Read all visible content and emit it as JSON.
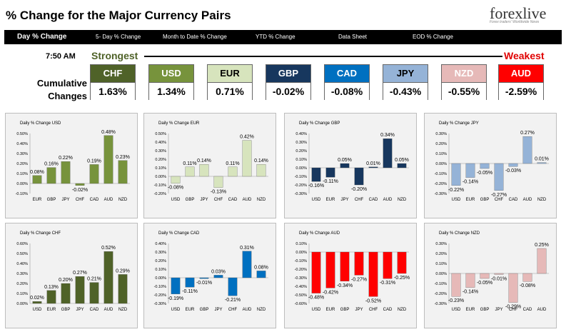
{
  "header": {
    "title": "% Change for the Major Currency Pairs",
    "logo_text": "forexlive",
    "logo_tagline": "Forex traders' Worldwide News"
  },
  "nav": {
    "items": [
      "Day % Change",
      "5- Day % Change",
      "Month to Date % Change",
      "YTD % Change",
      "Data Sheet",
      "EOD % Change"
    ]
  },
  "ranking": {
    "time": "7:50 AM",
    "strongest_label": "Strongest",
    "weakest_label": "Weakest",
    "cumulative_label_line1": "Cumulative",
    "cumulative_label_line2": "Changes",
    "tiles": [
      {
        "currency": "CHF",
        "value": "1.63%",
        "head_color": "#4f6228",
        "text_color": "#ffffff"
      },
      {
        "currency": "USD",
        "value": "1.34%",
        "head_color": "#77933c",
        "text_color": "#ffffff"
      },
      {
        "currency": "EUR",
        "value": "0.71%",
        "head_color": "#d7e4bd",
        "text_color": "#000000"
      },
      {
        "currency": "GBP",
        "value": "-0.02%",
        "head_color": "#17375e",
        "text_color": "#ffffff"
      },
      {
        "currency": "CAD",
        "value": "-0.08%",
        "head_color": "#0070c0",
        "text_color": "#ffffff"
      },
      {
        "currency": "JPY",
        "value": "-0.43%",
        "head_color": "#95b3d7",
        "text_color": "#000000"
      },
      {
        "currency": "NZD",
        "value": "-0.55%",
        "head_color": "#e6b9b8",
        "text_color": "#ffffff"
      },
      {
        "currency": "AUD",
        "value": "-2.59%",
        "head_color": "#ff0000",
        "text_color": "#ffffff"
      }
    ]
  },
  "chart_data": [
    {
      "type": "bar",
      "title": "Daily % Change USD",
      "categories": [
        "EUR",
        "GBP",
        "JPY",
        "CHF",
        "CAD",
        "AUD",
        "NZD"
      ],
      "values": [
        0.08,
        0.16,
        0.22,
        -0.02,
        0.19,
        0.48,
        0.23
      ],
      "value_labels": [
        "0.08%",
        "0.16%",
        "0.22%",
        "-0.02%",
        "0.19%",
        "0.48%",
        "0.23%"
      ],
      "yticks": [
        "0.50%",
        "0.40%",
        "0.30%",
        "0.20%",
        "0.10%",
        "0.00%",
        "-0.10%"
      ],
      "ylim": [
        -0.1,
        0.5
      ],
      "color": "#77933c"
    },
    {
      "type": "bar",
      "title": "Daily % Change EUR",
      "categories": [
        "USD",
        "GBP",
        "JPY",
        "CHF",
        "CAD",
        "AUD",
        "NZD"
      ],
      "values": [
        -0.08,
        0.11,
        0.14,
        -0.13,
        0.11,
        0.42,
        0.14
      ],
      "value_labels": [
        "-0.08%",
        "0.11%",
        "0.14%",
        "-0.13%",
        "0.11%",
        "0.42%",
        "0.14%"
      ],
      "yticks": [
        "0.50%",
        "0.40%",
        "0.30%",
        "0.20%",
        "0.10%",
        "0.00%",
        "-0.10%",
        "-0.20%"
      ],
      "ylim": [
        -0.2,
        0.5
      ],
      "color": "#d7e4bd"
    },
    {
      "type": "bar",
      "title": "Daily % Change GBP",
      "categories": [
        "USD",
        "EUR",
        "JPY",
        "CHF",
        "CAD",
        "AUD",
        "NZD"
      ],
      "values": [
        -0.16,
        -0.11,
        0.05,
        -0.2,
        0.01,
        0.34,
        0.05
      ],
      "value_labels": [
        "-0.16%",
        "-0.11%",
        "0.05%",
        "-0.20%",
        "0.01%",
        "0.34%",
        "0.05%"
      ],
      "yticks": [
        "0.40%",
        "0.30%",
        "0.20%",
        "0.10%",
        "0.00%",
        "-0.10%",
        "-0.20%",
        "-0.30%"
      ],
      "ylim": [
        -0.3,
        0.4
      ],
      "color": "#17375e"
    },
    {
      "type": "bar",
      "title": "Daily % Change JPY",
      "categories": [
        "USD",
        "EUR",
        "GBP",
        "CHF",
        "CAD",
        "AUD",
        "NZD"
      ],
      "values": [
        -0.22,
        -0.14,
        -0.05,
        -0.27,
        -0.03,
        0.27,
        0.01
      ],
      "value_labels": [
        "-0.22%",
        "-0.14%",
        "-0.05%",
        "-0.27%",
        "-0.03%",
        "0.27%",
        "0.01%"
      ],
      "yticks": [
        "0.30%",
        "0.20%",
        "0.10%",
        "0.00%",
        "-0.10%",
        "-0.20%",
        "-0.30%"
      ],
      "ylim": [
        -0.3,
        0.3
      ],
      "color": "#95b3d7"
    },
    {
      "type": "bar",
      "title": "Daily % Change CHF",
      "categories": [
        "USD",
        "EUR",
        "GBP",
        "JPY",
        "CAD",
        "AUD",
        "NZD"
      ],
      "values": [
        0.02,
        0.13,
        0.2,
        0.27,
        0.21,
        0.52,
        0.29
      ],
      "value_labels": [
        "0.02%",
        "0.13%",
        "0.20%",
        "0.27%",
        "0.21%",
        "0.52%",
        "0.29%"
      ],
      "yticks": [
        "0.60%",
        "0.50%",
        "0.40%",
        "0.30%",
        "0.20%",
        "0.10%",
        "0.00%"
      ],
      "ylim": [
        0,
        0.6
      ],
      "color": "#4f6228"
    },
    {
      "type": "bar",
      "title": "Daily % Change CAD",
      "categories": [
        "USD",
        "EUR",
        "GBP",
        "JPY",
        "CHF",
        "AUD",
        "NZD"
      ],
      "values": [
        -0.19,
        -0.11,
        -0.01,
        0.03,
        -0.21,
        0.31,
        0.08
      ],
      "value_labels": [
        "-0.19%",
        "-0.11%",
        "-0.01%",
        "0.03%",
        "-0.21%",
        "0.31%",
        "0.08%"
      ],
      "yticks": [
        "0.40%",
        "0.30%",
        "0.20%",
        "0.10%",
        "0.00%",
        "-0.10%",
        "-0.20%",
        "-0.30%"
      ],
      "ylim": [
        -0.3,
        0.4
      ],
      "color": "#0070c0"
    },
    {
      "type": "bar",
      "title": "Daily % Change AUD",
      "categories": [
        "USD",
        "EUR",
        "GBP",
        "JPY",
        "CHF",
        "CAD",
        "NZD"
      ],
      "values": [
        -0.48,
        -0.42,
        -0.34,
        -0.27,
        -0.52,
        -0.31,
        -0.25
      ],
      "value_labels": [
        "-0.48%",
        "-0.42%",
        "-0.34%",
        "-0.27%",
        "-0.52%",
        "-0.31%",
        "-0.25%"
      ],
      "yticks": [
        "0.10%",
        "0.00%",
        "-0.10%",
        "-0.20%",
        "-0.30%",
        "-0.40%",
        "-0.50%",
        "-0.60%"
      ],
      "ylim": [
        -0.6,
        0.1
      ],
      "color": "#ff0000"
    },
    {
      "type": "bar",
      "title": "Daily % Change NZD",
      "categories": [
        "USD",
        "EUR",
        "GBP",
        "JPY",
        "CHF",
        "CAD",
        "AUD"
      ],
      "values": [
        -0.23,
        -0.14,
        -0.05,
        -0.01,
        -0.29,
        -0.08,
        0.25
      ],
      "value_labels": [
        "-0.23%",
        "-0.14%",
        "-0.05%",
        "-0.01%",
        "-0.29%",
        "-0.08%",
        "0.25%"
      ],
      "yticks": [
        "0.30%",
        "0.20%",
        "0.10%",
        "0.00%",
        "-0.10%",
        "-0.20%",
        "-0.30%"
      ],
      "ylim": [
        -0.3,
        0.3
      ],
      "color": "#e6b9b8"
    }
  ]
}
